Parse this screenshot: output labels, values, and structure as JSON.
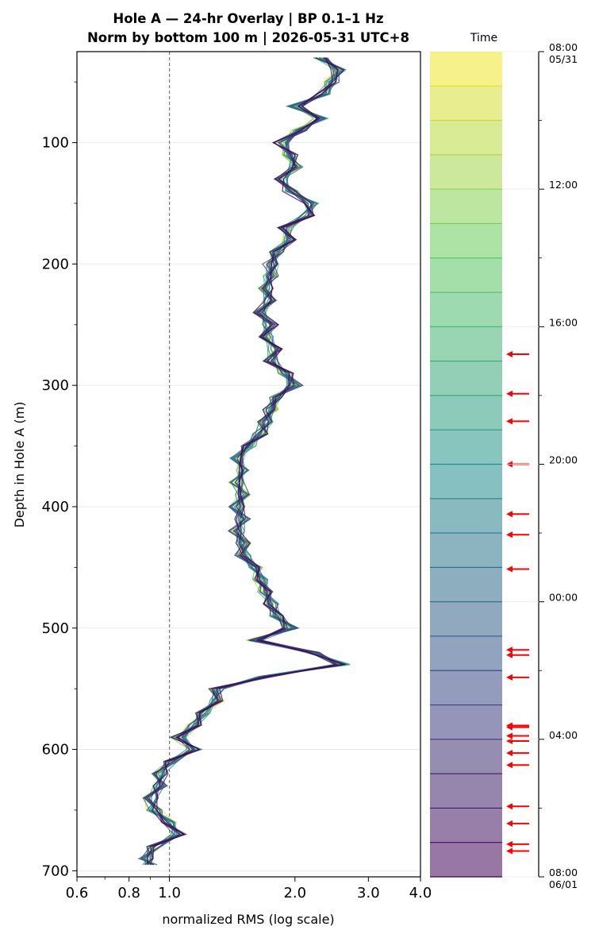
{
  "title_line1": "Hole A — 24-hr Overlay  |  BP 0.1–1 Hz",
  "title_line2": "Norm by bottom 100 m  |  2026-05-31 UTC+8",
  "chart_data": {
    "type": "line",
    "xlabel": "normalized RMS  (log scale)",
    "ylabel": "Depth in Hole A (m)",
    "x_scale": "log",
    "xlim": [
      0.6,
      4.0
    ],
    "ylim": [
      705,
      25
    ],
    "x_ticks": [
      {
        "v": 0.6,
        "label": "0.6"
      },
      {
        "v": 0.8,
        "label": "0.8"
      },
      {
        "v": 1.0,
        "label": "1.0"
      },
      {
        "v": 2.0,
        "label": "2.0"
      },
      {
        "v": 3.0,
        "label": "3.0"
      },
      {
        "v": 4.0,
        "label": "4.0"
      }
    ],
    "y_ticks": [
      {
        "v": 100,
        "label": "100"
      },
      {
        "v": 200,
        "label": "200"
      },
      {
        "v": 300,
        "label": "300"
      },
      {
        "v": 400,
        "label": "400"
      },
      {
        "v": 500,
        "label": "500"
      },
      {
        "v": 600,
        "label": "600"
      },
      {
        "v": 700,
        "label": "700"
      }
    ],
    "y_minor_ticks": [
      50,
      150,
      250,
      350,
      450,
      550,
      650
    ],
    "grid": "horizontal",
    "reference_line_x": 1.0,
    "series_count": 24,
    "profile_depths": [
      30,
      40,
      50,
      60,
      70,
      80,
      90,
      100,
      110,
      120,
      130,
      140,
      150,
      160,
      170,
      180,
      190,
      200,
      210,
      220,
      230,
      240,
      250,
      260,
      270,
      280,
      290,
      300,
      310,
      320,
      330,
      340,
      350,
      360,
      370,
      380,
      390,
      400,
      410,
      420,
      430,
      440,
      450,
      460,
      470,
      480,
      490,
      500,
      510,
      520,
      530,
      540,
      550,
      560,
      570,
      580,
      590,
      600,
      610,
      620,
      630,
      640,
      650,
      660,
      670,
      680,
      690,
      695
    ],
    "profile_rms": [
      2.3,
      2.55,
      2.45,
      2.35,
      2.0,
      2.3,
      2.05,
      1.85,
      1.95,
      2.0,
      1.85,
      1.95,
      2.2,
      2.15,
      1.9,
      1.95,
      1.8,
      1.75,
      1.75,
      1.7,
      1.75,
      1.65,
      1.75,
      1.7,
      1.8,
      1.75,
      1.9,
      2.0,
      1.8,
      1.75,
      1.7,
      1.65,
      1.55,
      1.45,
      1.5,
      1.45,
      1.5,
      1.45,
      1.5,
      1.45,
      1.5,
      1.5,
      1.6,
      1.65,
      1.7,
      1.75,
      1.8,
      1.95,
      1.6,
      2.2,
      2.6,
      1.7,
      1.3,
      1.3,
      1.2,
      1.15,
      1.05,
      1.15,
      1.0,
      0.95,
      0.95,
      0.9,
      0.92,
      1.0,
      1.05,
      0.92,
      0.88,
      0.9
    ],
    "colorbar": {
      "title": "Time",
      "tick_labels": [
        {
          "hour": 0,
          "label": "08:00",
          "sub": "05/31"
        },
        {
          "hour": 4,
          "label": "12:00"
        },
        {
          "hour": 8,
          "label": "16:00"
        },
        {
          "hour": 12,
          "label": "20:00"
        },
        {
          "hour": 16,
          "label": "00:00"
        },
        {
          "hour": 20,
          "label": "04:00"
        },
        {
          "hour": 24,
          "label": "08:00",
          "sub": "06/01"
        }
      ],
      "bands": 24,
      "arrow_hours": [
        8.8,
        9.95,
        10.75,
        12.0,
        13.45,
        14.05,
        15.05,
        17.4,
        17.55,
        18.2,
        19.6,
        19.65,
        19.9,
        20.05,
        20.4,
        20.75,
        21.95,
        22.45,
        23.05,
        23.25
      ]
    }
  }
}
